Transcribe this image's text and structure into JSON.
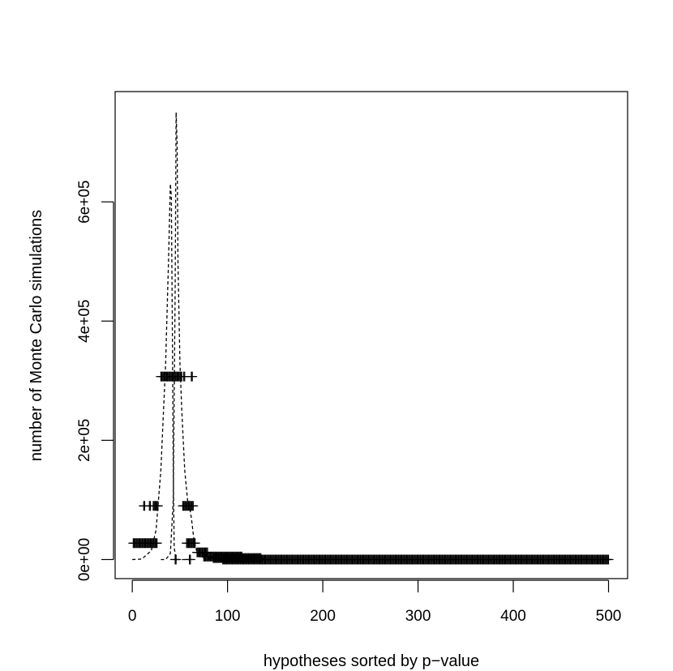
{
  "chart_data": {
    "type": "scatter",
    "title": "",
    "xlabel": "hypotheses sorted by p−value",
    "ylabel": "number of Monte Carlo simulations",
    "xlim": [
      -18,
      520
    ],
    "ylim": [
      -32000,
      785000
    ],
    "x_ticks": [
      0,
      100,
      200,
      300,
      400,
      500
    ],
    "x_tick_labels": [
      "0",
      "100",
      "200",
      "300",
      "400",
      "500"
    ],
    "y_ticks": [
      0,
      200000,
      400000,
      600000
    ],
    "y_tick_labels": [
      "0e+00",
      "2e+05",
      "4e+05",
      "6e+05"
    ],
    "grid": false,
    "legend": "none",
    "series": [
      {
        "marker": "plus",
        "color": "#000000",
        "segments": [
          {
            "x_from": 1,
            "x_to": 9,
            "y": 27500,
            "step": 1
          },
          {
            "x_from": 10,
            "x_to": 18,
            "y": 27500,
            "step": 1
          },
          {
            "x_from": 19,
            "x_to": 26,
            "y": 27500,
            "step": 1
          },
          {
            "x_from": 12,
            "x_to": 13,
            "y": 90000,
            "step": 1
          },
          {
            "x_from": 18,
            "x_to": 19,
            "y": 90000,
            "step": 1
          },
          {
            "x_from": 22,
            "x_to": 27,
            "y": 90000,
            "step": 1
          },
          {
            "x_from": 30,
            "x_to": 52,
            "y": 307000,
            "step": 1
          },
          {
            "x_from": 54,
            "x_to": 55,
            "y": 307000,
            "step": 1
          },
          {
            "x_from": 62,
            "x_to": 63,
            "y": 307000,
            "step": 1
          },
          {
            "x_from": 53,
            "x_to": 64,
            "y": 90000,
            "step": 1
          },
          {
            "x_from": 57,
            "x_to": 66,
            "y": 27500,
            "step": 1
          },
          {
            "x_from": 45,
            "x_to": 46,
            "y": 0,
            "step": 1
          },
          {
            "x_from": 60,
            "x_to": 61,
            "y": 0,
            "step": 1
          },
          {
            "x_from": 68,
            "x_to": 79,
            "y": 12000,
            "step": 1
          },
          {
            "x_from": 75,
            "x_to": 115,
            "y": 5000,
            "step": 1
          },
          {
            "x_from": 85,
            "x_to": 135,
            "y": 2500,
            "step": 1
          },
          {
            "x_from": 95,
            "x_to": 500,
            "y": 0,
            "step": 1
          }
        ]
      },
      {
        "name": "",
        "style": "dashed",
        "color": "#000000",
        "x": [
          0,
          10,
          20,
          25,
          30,
          35,
          38,
          40,
          41,
          42,
          43,
          44,
          46,
          48,
          50,
          52,
          55,
          60
        ],
        "values": [
          0,
          800,
          15000,
          50000,
          150000,
          330000,
          500000,
          630000,
          610000,
          400000,
          150000,
          20000,
          0,
          0,
          0,
          0,
          0,
          0
        ]
      },
      {
        "name": "",
        "style": "dashed",
        "color": "#000000",
        "x": [
          30,
          35,
          40,
          43,
          45,
          46,
          47,
          48,
          50,
          52,
          55,
          58,
          60,
          62,
          65,
          68,
          70,
          75,
          80,
          100,
          150
        ],
        "values": [
          0,
          0,
          10000,
          100000,
          450000,
          750000,
          700000,
          500000,
          330000,
          250000,
          150000,
          100000,
          90000,
          70000,
          30000,
          12000,
          8000,
          3000,
          1000,
          100,
          0
        ]
      }
    ]
  }
}
